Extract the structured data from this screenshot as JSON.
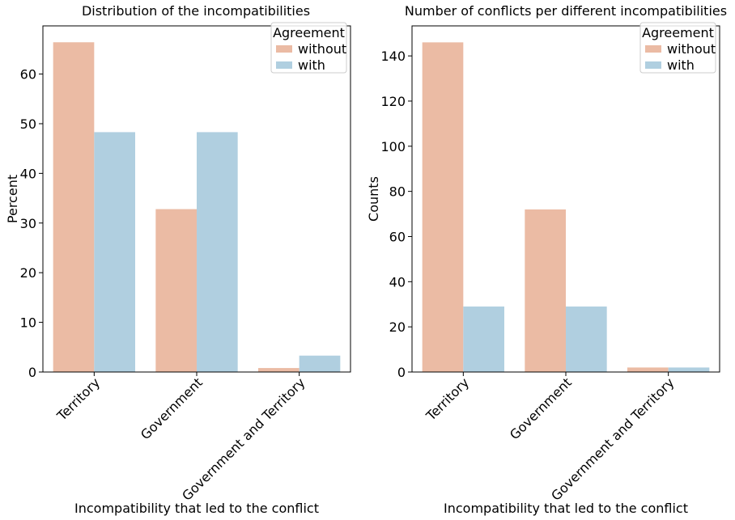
{
  "chart_data": [
    {
      "type": "bar",
      "title": "Distribution of the incompatibilities",
      "xlabel": "Incompatibility that led to the conflict",
      "ylabel": "Percent",
      "categories": [
        "Territory",
        "Government",
        "Government and Territory"
      ],
      "series": [
        {
          "name": "without",
          "color": "#EBBBA4",
          "values": [
            66.4,
            32.8,
            0.8
          ]
        },
        {
          "name": "with",
          "color": "#B0CFE0",
          "values": [
            48.3,
            48.3,
            3.3
          ]
        }
      ],
      "ylim": [
        0,
        69.7
      ],
      "yticks": [
        0,
        10,
        20,
        30,
        40,
        50,
        60
      ],
      "legend": {
        "title": "Agreement",
        "position": "top-right"
      },
      "grid": false
    },
    {
      "type": "bar",
      "title": "Number of conflicts per different incompatibilities",
      "xlabel": "Incompatibility that led to the conflict",
      "ylabel": "Counts",
      "categories": [
        "Territory",
        "Government",
        "Government and Territory"
      ],
      "series": [
        {
          "name": "without",
          "color": "#EBBBA4",
          "values": [
            146,
            72,
            2
          ]
        },
        {
          "name": "with",
          "color": "#B0CFE0",
          "values": [
            29,
            29,
            2
          ]
        }
      ],
      "ylim": [
        0,
        153.3
      ],
      "yticks": [
        0,
        20,
        40,
        60,
        80,
        100,
        120,
        140
      ],
      "legend": {
        "title": "Agreement",
        "position": "top-right"
      },
      "grid": false
    }
  ]
}
